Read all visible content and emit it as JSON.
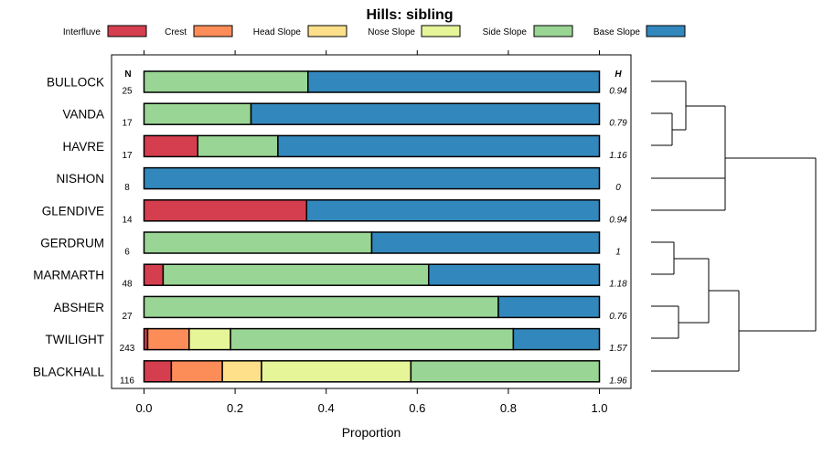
{
  "chart_data": {
    "type": "bar",
    "title": "Hills: sibling",
    "xlabel": "Proportion",
    "ylabel": "",
    "xlim": [
      0,
      1
    ],
    "x_ticks": [
      "0.0",
      "0.2",
      "0.4",
      "0.6",
      "0.8",
      "1.0"
    ],
    "n_header": "N",
    "h_header": "H",
    "legend_position": "top",
    "series": [
      {
        "name": "Interfluve",
        "color": "#d53e4f"
      },
      {
        "name": "Crest",
        "color": "#fc8d59"
      },
      {
        "name": "Head Slope",
        "color": "#fee08b"
      },
      {
        "name": "Nose Slope",
        "color": "#e6f598"
      },
      {
        "name": "Side Slope",
        "color": "#99d594"
      },
      {
        "name": "Base Slope",
        "color": "#3288bd"
      }
    ],
    "categories": [
      "BULLOCK",
      "VANDA",
      "HAVRE",
      "NISHON",
      "GLENDIVE",
      "GERDRUM",
      "MARMARTH",
      "ABSHER",
      "TWILIGHT",
      "BLACKHALL"
    ],
    "rows": [
      {
        "label": "BULLOCK",
        "n": "25",
        "h": "0.94",
        "values": [
          0,
          0,
          0,
          0,
          0.36,
          0.64
        ]
      },
      {
        "label": "VANDA",
        "n": "17",
        "h": "0.79",
        "values": [
          0,
          0,
          0,
          0,
          0.235,
          0.765
        ]
      },
      {
        "label": "HAVRE",
        "n": "17",
        "h": "1.16",
        "values": [
          0.118,
          0,
          0,
          0,
          0.176,
          0.706
        ]
      },
      {
        "label": "NISHON",
        "n": "8",
        "h": "0",
        "values": [
          0,
          0,
          0,
          0,
          0,
          1.0
        ]
      },
      {
        "label": "GLENDIVE",
        "n": "14",
        "h": "0.94",
        "values": [
          0.357,
          0,
          0,
          0,
          0,
          0.643
        ]
      },
      {
        "label": "GERDRUM",
        "n": "6",
        "h": "1",
        "values": [
          0,
          0,
          0,
          0,
          0.5,
          0.5
        ]
      },
      {
        "label": "MARMARTH",
        "n": "48",
        "h": "1.18",
        "values": [
          0.042,
          0,
          0,
          0,
          0.583,
          0.375
        ]
      },
      {
        "label": "ABSHER",
        "n": "27",
        "h": "0.76",
        "values": [
          0,
          0,
          0,
          0,
          0.778,
          0.222
        ]
      },
      {
        "label": "TWILIGHT",
        "n": "243",
        "h": "1.57",
        "values": [
          0.008,
          0.091,
          0.0,
          0.091,
          0.621,
          0.189
        ]
      },
      {
        "label": "BLACKHALL",
        "n": "116",
        "h": "1.96",
        "values": [
          0.06,
          0.112,
          0.086,
          0.328,
          0.414,
          0
        ]
      }
    ]
  }
}
